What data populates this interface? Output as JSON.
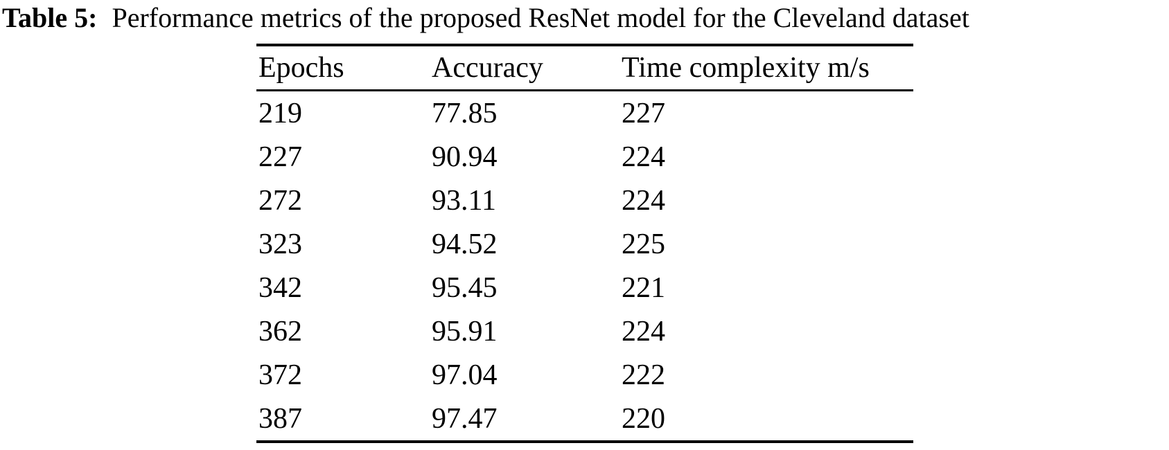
{
  "caption": {
    "label": "Table 5:",
    "text": "Performance metrics of the proposed ResNet model for the Cleveland dataset"
  },
  "table": {
    "headers": [
      "Epochs",
      "Accuracy",
      "Time complexity m/s"
    ],
    "rows": [
      [
        "219",
        "77.85",
        "227"
      ],
      [
        "227",
        "90.94",
        "224"
      ],
      [
        "272",
        "93.11",
        "224"
      ],
      [
        "323",
        "94.52",
        "225"
      ],
      [
        "342",
        "95.45",
        "221"
      ],
      [
        "362",
        "95.91",
        "224"
      ],
      [
        "372",
        "97.04",
        "222"
      ],
      [
        "387",
        "97.47",
        "220"
      ]
    ]
  },
  "colors": {
    "background": "#ffffff",
    "text": "#000000",
    "rule": "#000000"
  }
}
